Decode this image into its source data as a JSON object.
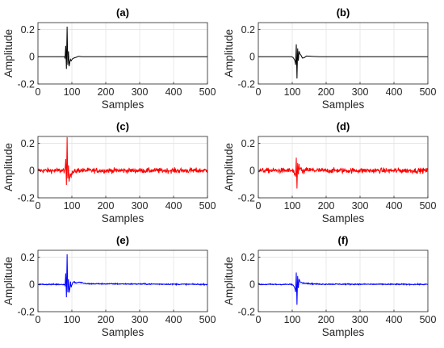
{
  "chart_data": [
    {
      "type": "line",
      "title": "(a)",
      "xlabel": "Samples",
      "ylabel": "Amplitude",
      "xlim": [
        0,
        500
      ],
      "ylim": [
        -0.2,
        0.25
      ],
      "grid": true,
      "xticks": [
        "0",
        "100",
        "200",
        "300",
        "400",
        "500"
      ],
      "yticks": [
        "-0.2",
        "0",
        "0.2"
      ],
      "color": "#000000",
      "noise": 0,
      "x": [
        0,
        78,
        80,
        82,
        84,
        86,
        88,
        90,
        92,
        94,
        96,
        98,
        102,
        106,
        112,
        120,
        130,
        140,
        500
      ],
      "y": [
        0,
        0,
        -0.01,
        0.08,
        -0.09,
        0.22,
        -0.06,
        0.04,
        -0.07,
        -0.04,
        -0.02,
        -0.03,
        -0.015,
        -0.01,
        -0.005,
        0.003,
        0.0,
        0.0,
        0
      ]
    },
    {
      "type": "line",
      "title": "(b)",
      "xlabel": "Samples",
      "ylabel": "Amplitude",
      "xlim": [
        0,
        500
      ],
      "ylim": [
        -0.2,
        0.25
      ],
      "grid": true,
      "xticks": [
        "0",
        "100",
        "200",
        "300",
        "400",
        "500"
      ],
      "yticks": [
        "-0.2",
        "0",
        "0.2"
      ],
      "color": "#000000",
      "noise": 0,
      "x": [
        0,
        98,
        102,
        105,
        108,
        110,
        112,
        114,
        116,
        118,
        120,
        123,
        126,
        130,
        135,
        142,
        150,
        160,
        180,
        500
      ],
      "y": [
        0,
        0,
        -0.005,
        -0.015,
        -0.03,
        -0.06,
        0.09,
        -0.16,
        0.06,
        -0.03,
        0.04,
        0.02,
        0.01,
        -0.01,
        -0.008,
        0.005,
        0.004,
        0.002,
        0,
        0
      ]
    },
    {
      "type": "line",
      "title": "(c)",
      "xlabel": "Samples",
      "ylabel": "Amplitude",
      "xlim": [
        0,
        500
      ],
      "ylim": [
        -0.2,
        0.25
      ],
      "grid": true,
      "xticks": [
        "0",
        "100",
        "200",
        "300",
        "400",
        "500"
      ],
      "yticks": [
        "-0.2",
        "0",
        "0.2"
      ],
      "color": "#ff0000",
      "noise": 0.018,
      "x": [
        0,
        78,
        80,
        82,
        84,
        86,
        88,
        90,
        92,
        94,
        96,
        98,
        102,
        106,
        112,
        120,
        130,
        140,
        500
      ],
      "y": [
        0,
        0,
        -0.01,
        0.08,
        -0.1,
        0.23,
        -0.06,
        0.04,
        -0.07,
        -0.04,
        -0.02,
        -0.03,
        -0.015,
        -0.01,
        -0.005,
        0.003,
        0.0,
        0.0,
        0
      ]
    },
    {
      "type": "line",
      "title": "(d)",
      "xlabel": "Samples",
      "ylabel": "Amplitude",
      "xlim": [
        0,
        500
      ],
      "ylim": [
        -0.2,
        0.25
      ],
      "grid": true,
      "xticks": [
        "0",
        "100",
        "200",
        "300",
        "400",
        "500"
      ],
      "yticks": [
        "-0.2",
        "0",
        "0.2"
      ],
      "color": "#ff0000",
      "noise": 0.018,
      "x": [
        0,
        98,
        102,
        105,
        108,
        110,
        112,
        114,
        116,
        118,
        120,
        123,
        126,
        130,
        135,
        142,
        150,
        160,
        180,
        500
      ],
      "y": [
        0,
        0,
        -0.005,
        -0.015,
        -0.03,
        -0.06,
        0.09,
        -0.14,
        0.06,
        -0.03,
        0.04,
        0.02,
        0.01,
        -0.01,
        -0.008,
        0.005,
        0.004,
        0.002,
        0,
        0
      ]
    },
    {
      "type": "line",
      "title": "(e)",
      "xlabel": "Samples",
      "ylabel": "Amplitude",
      "xlim": [
        0,
        500
      ],
      "ylim": [
        -0.2,
        0.25
      ],
      "grid": true,
      "xticks": [
        "0",
        "100",
        "200",
        "300",
        "400",
        "500"
      ],
      "yticks": [
        "-0.2",
        "0",
        "0.2"
      ],
      "color": "#0000ff",
      "noise": 0.004,
      "x": [
        0,
        78,
        80,
        82,
        84,
        86,
        88,
        90,
        92,
        94,
        96,
        98,
        102,
        106,
        112,
        120,
        130,
        140,
        500
      ],
      "y": [
        0,
        0,
        -0.01,
        0.08,
        -0.09,
        0.22,
        -0.06,
        0.04,
        -0.06,
        -0.03,
        0.02,
        -0.02,
        0.01,
        0.02,
        0.01,
        0.015,
        0.012,
        0.005,
        0
      ]
    },
    {
      "type": "line",
      "title": "(f)",
      "xlabel": "Samples",
      "ylabel": "Amplitude",
      "xlim": [
        0,
        500
      ],
      "ylim": [
        -0.2,
        0.25
      ],
      "grid": true,
      "xticks": [
        "0",
        "100",
        "200",
        "300",
        "400",
        "500"
      ],
      "yticks": [
        "-0.2",
        "0",
        "0.2"
      ],
      "color": "#0000ff",
      "noise": 0.004,
      "x": [
        0,
        98,
        102,
        105,
        108,
        110,
        112,
        114,
        116,
        118,
        120,
        123,
        126,
        130,
        135,
        142,
        150,
        160,
        180,
        500
      ],
      "y": [
        0,
        0,
        -0.005,
        -0.015,
        -0.03,
        -0.06,
        0.09,
        -0.15,
        0.06,
        -0.03,
        0.04,
        0.02,
        0.015,
        0.01,
        0.012,
        0.008,
        0.006,
        0.004,
        0.002,
        0
      ]
    }
  ]
}
